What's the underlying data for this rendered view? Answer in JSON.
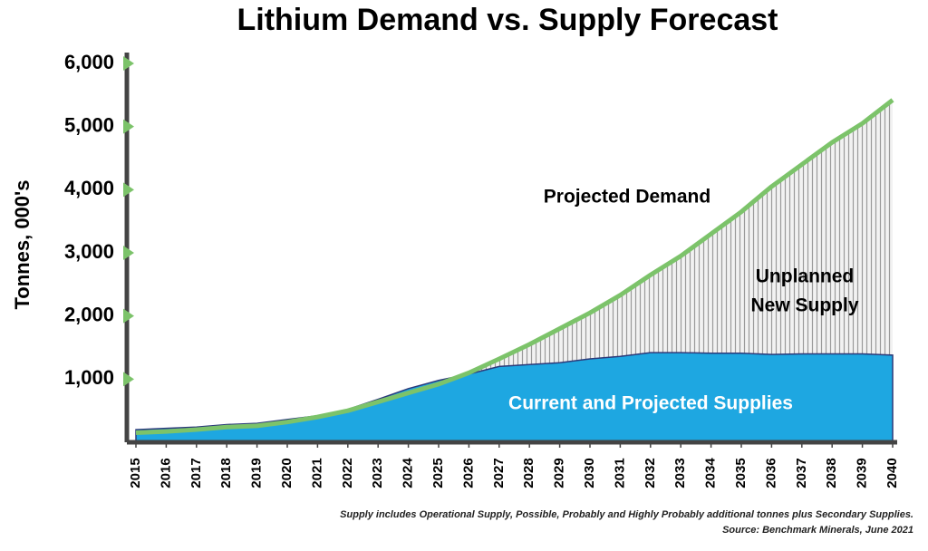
{
  "chart_data": {
    "type": "area",
    "title": "Lithium Demand vs. Supply Forecast",
    "y_label": "Tonnes, 000's",
    "x": [
      2015,
      2016,
      2017,
      2018,
      2019,
      2020,
      2021,
      2022,
      2023,
      2024,
      2025,
      2026,
      2027,
      2028,
      2029,
      2030,
      2031,
      2032,
      2033,
      2034,
      2035,
      2036,
      2037,
      2038,
      2039,
      2040
    ],
    "xlim": [
      2015,
      2040
    ],
    "xticks": [
      2015,
      2016,
      2017,
      2018,
      2019,
      2020,
      2021,
      2022,
      2023,
      2024,
      2025,
      2026,
      2027,
      2028,
      2029,
      2030,
      2031,
      2032,
      2033,
      2034,
      2035,
      2036,
      2037,
      2038,
      2039,
      2040
    ],
    "ylim": [
      0,
      6000
    ],
    "yticks": [
      {
        "value": 1000,
        "label": "1,000"
      },
      {
        "value": 2000,
        "label": "2,000"
      },
      {
        "value": 3000,
        "label": "3,000"
      },
      {
        "value": 4000,
        "label": "4,000"
      },
      {
        "value": 5000,
        "label": "5,000"
      },
      {
        "value": 6000,
        "label": "6,000"
      }
    ],
    "series": [
      {
        "name": "Projected Demand",
        "color": "#7cc36a",
        "values": [
          150,
          170,
          200,
          240,
          260,
          320,
          400,
          500,
          640,
          780,
          920,
          1100,
          1320,
          1550,
          1800,
          2050,
          2330,
          2650,
          2950,
          3300,
          3650,
          4050,
          4400,
          4750,
          5050,
          5420
        ]
      },
      {
        "name": "Current and Projected Supplies",
        "color": "#1ea7e1",
        "values": [
          200,
          220,
          240,
          280,
          300,
          360,
          420,
          520,
          680,
          850,
          980,
          1080,
          1200,
          1230,
          1260,
          1320,
          1360,
          1420,
          1420,
          1410,
          1410,
          1390,
          1400,
          1400,
          1400,
          1380
        ]
      }
    ],
    "gap_label": [
      "Unplanned",
      "New Supply"
    ],
    "gap_color": "#9a9a9a",
    "footnote": "Supply includes Operational Supply, Possible, Probably and Highly Probably additional tonnes plus Secondary Supplies.",
    "source": "Source: Benchmark Minerals, June 2021"
  }
}
